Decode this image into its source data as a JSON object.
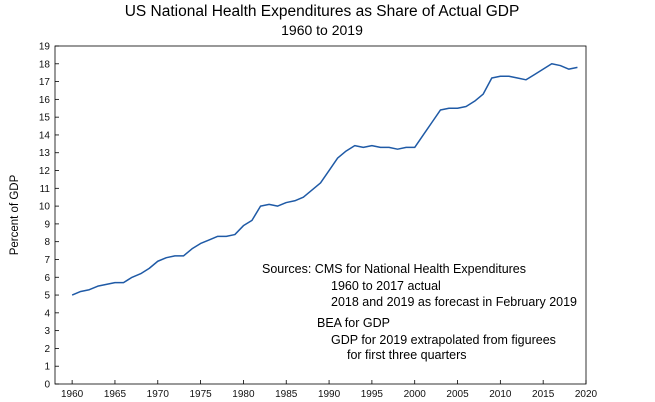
{
  "chart_data": {
    "type": "line",
    "title": "US National Health Expenditures as Share of Actual GDP",
    "subtitle": "1960 to 2019",
    "xlabel": "",
    "ylabel": "Percent of GDP",
    "xlim": [
      1958,
      2020
    ],
    "ylim": [
      0,
      19
    ],
    "x_ticks": [
      1960,
      1965,
      1970,
      1975,
      1980,
      1985,
      1990,
      1995,
      2000,
      2005,
      2010,
      2015,
      2020
    ],
    "y_ticks": [
      0,
      1,
      2,
      3,
      4,
      5,
      6,
      7,
      8,
      9,
      10,
      11,
      12,
      13,
      14,
      15,
      16,
      17,
      18,
      19
    ],
    "grid": false,
    "line_color": "#1f5aa6",
    "series": [
      {
        "x": [
          1960,
          1961,
          1962,
          1963,
          1964,
          1965,
          1966,
          1967,
          1968,
          1969,
          1970,
          1971,
          1972,
          1973,
          1974,
          1975,
          1976,
          1977,
          1978,
          1979,
          1980,
          1981,
          1982,
          1983,
          1984,
          1985,
          1986,
          1987,
          1988,
          1989,
          1990,
          1991,
          1992,
          1993,
          1994,
          1995,
          1996,
          1997,
          1998,
          1999,
          2000,
          2001,
          2002,
          2003,
          2004,
          2005,
          2006,
          2007,
          2008,
          2009,
          2010,
          2011,
          2012,
          2013,
          2014,
          2015,
          2016,
          2017,
          2018,
          2019
        ],
        "values": [
          5.0,
          5.2,
          5.3,
          5.5,
          5.6,
          5.7,
          5.7,
          6.0,
          6.2,
          6.5,
          6.9,
          7.1,
          7.2,
          7.2,
          7.6,
          7.9,
          8.1,
          8.3,
          8.3,
          8.4,
          8.9,
          9.2,
          10.0,
          10.1,
          10.0,
          10.2,
          10.3,
          10.5,
          10.9,
          11.3,
          12.0,
          12.7,
          13.1,
          13.4,
          13.3,
          13.4,
          13.3,
          13.3,
          13.2,
          13.3,
          13.3,
          14.0,
          14.7,
          15.4,
          15.5,
          15.5,
          15.6,
          15.9,
          16.3,
          17.2,
          17.3,
          17.3,
          17.2,
          17.1,
          17.4,
          17.7,
          18.0,
          17.9,
          17.7,
          17.8
        ]
      }
    ],
    "annotations": [
      "Sources:  CMS for National Health Expenditures",
      "1960 to 2017 actual",
      "2018 and 2019 as forecast in February 2019",
      "BEA for GDP",
      "GDP for 2019 extrapolated from figurees",
      "for first three quarters"
    ]
  }
}
